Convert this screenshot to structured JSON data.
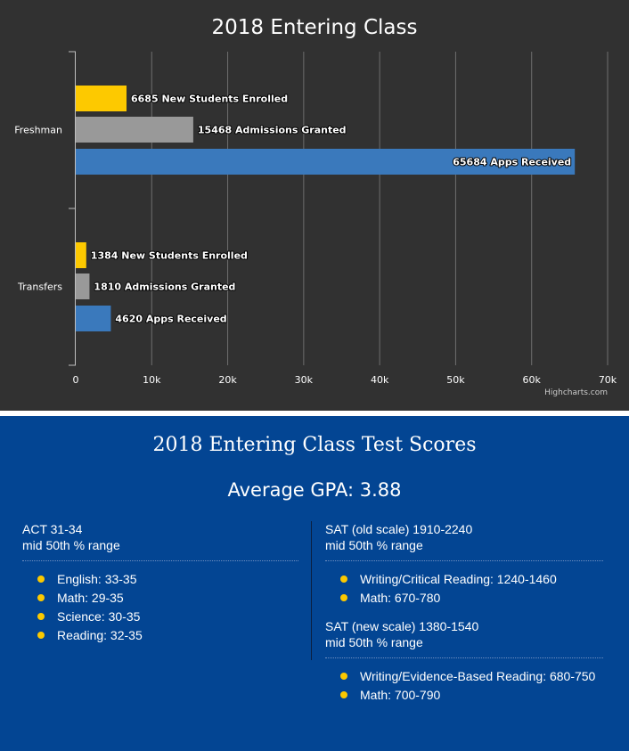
{
  "chart_data": {
    "type": "bar",
    "orientation": "horizontal",
    "title": "2018 Entering Class",
    "categories": [
      "Freshman",
      "Transfers"
    ],
    "series": [
      {
        "name": "New Students Enrolled",
        "color": "#FDC900",
        "values": [
          6685,
          1384
        ]
      },
      {
        "name": "Admissions Granted",
        "color": "#999999",
        "values": [
          15468,
          1810
        ]
      },
      {
        "name": "Apps Received",
        "color": "#3A79BC",
        "values": [
          65684,
          4620
        ]
      }
    ],
    "data_labels": [
      [
        "6685 New Students Enrolled",
        "15468 Admissions Granted",
        "65684 Apps Received"
      ],
      [
        "1384 New Students Enrolled",
        "1810 Admissions Granted",
        "4620 Apps Received"
      ]
    ],
    "xlim": [
      0,
      70000
    ],
    "ticks": [
      {
        "value": 0,
        "label": "0"
      },
      {
        "value": 10000,
        "label": "10k"
      },
      {
        "value": 20000,
        "label": "20k"
      },
      {
        "value": 30000,
        "label": "30k"
      },
      {
        "value": 40000,
        "label": "40k"
      },
      {
        "value": 50000,
        "label": "50k"
      },
      {
        "value": 60000,
        "label": "60k"
      },
      {
        "value": 70000,
        "label": "70k"
      }
    ],
    "grid": true,
    "credits": "Highcharts.com"
  },
  "scores": {
    "title": "2018 Entering Class Test Scores",
    "gpa": "Average GPA: 3.88",
    "act": {
      "heading": "ACT 31-34",
      "subheading": "mid 50th % range",
      "items": [
        "English: 33-35",
        "Math: 29-35",
        "Science: 30-35",
        "Reading: 32-35"
      ]
    },
    "sat_old": {
      "heading": "SAT (old scale) 1910-2240",
      "subheading": "mid 50th % range",
      "items": [
        "Writing/Critical Reading: 1240-1460",
        "Math: 670-780"
      ]
    },
    "sat_new": {
      "heading": "SAT (new scale) 1380-1540",
      "subheading": "mid 50th % range",
      "items": [
        "Writing/Evidence-Based Reading: 680-750",
        "Math: 700-790"
      ]
    }
  }
}
